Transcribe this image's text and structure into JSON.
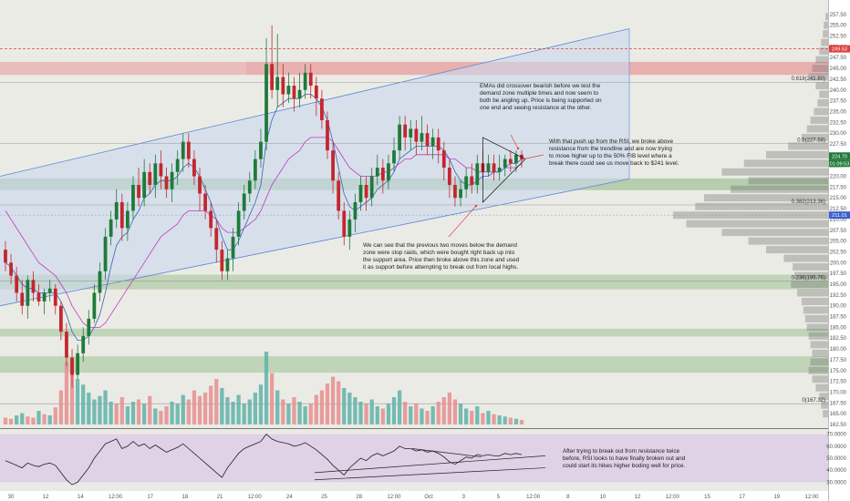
{
  "theme": {
    "background": "#ebebe6",
    "panel_bg": "#ffffff",
    "bull_color": "#1f7a3a",
    "bear_color": "#c4262e",
    "vol_bull": "#5fb3a8",
    "vol_bear": "#e88e8e",
    "channel_fill": "#c9d8ec",
    "channel_stroke": "#5a86d6",
    "green_zone": "#a9c79f",
    "red_zone": "#e7a5a5",
    "rsi_band": "#dccbe6",
    "ema_fast": "#3a63b8",
    "ema_slow": "#c03ac0",
    "fib_line": "#999999",
    "price_tag": "#1f7a3a",
    "red_dash": "#e04040",
    "blue_tag": "#3b5fd0"
  },
  "chart_data": {
    "type": "candlestick",
    "price_axis": {
      "ylim": [
        162.5,
        260
      ],
      "ticks": [
        "257.50",
        "255.00",
        "252.50",
        "250.00",
        "247.50",
        "245.00",
        "242.50",
        "240.00",
        "237.50",
        "235.00",
        "232.50",
        "230.00",
        "227.50",
        "225.00",
        "222.50",
        "220.00",
        "217.50",
        "215.00",
        "212.50",
        "210.00",
        "207.50",
        "205.00",
        "202.50",
        "200.00",
        "197.50",
        "195.00",
        "192.50",
        "190.00",
        "187.50",
        "185.00",
        "182.50",
        "180.00",
        "177.50",
        "175.00",
        "172.50",
        "170.00",
        "167.50",
        "165.00",
        "162.50"
      ]
    },
    "time_axis": {
      "ticks": [
        "30",
        "12",
        "14",
        "12:00",
        "17",
        "18",
        "21",
        "12:00",
        "24",
        "25",
        "28",
        "12:00",
        "Oct",
        "3",
        "5",
        "12:00",
        "8",
        "10",
        "12",
        "12:00",
        "15",
        "17",
        "19",
        "12:00"
      ]
    },
    "tags": {
      "top_red": "249.53",
      "price": "224.70",
      "countdown": "01:09:53",
      "blue": "211.01"
    },
    "fib_levels": [
      {
        "label": "0.618(241.80)",
        "value": 241.8
      },
      {
        "label": "0.5(227.58)",
        "value": 227.58
      },
      {
        "label": "0.382(213.36)",
        "value": 213.36
      },
      {
        "label": "0.236(195.76)",
        "value": 195.76
      },
      {
        "label": "0(167.32)",
        "value": 167.32
      }
    ],
    "red_dashed_level": 249.53,
    "zones": [
      {
        "type": "resistance",
        "from": 243.5,
        "to": 246.5
      },
      {
        "type": "support",
        "from": 219.5,
        "to": 216.8
      },
      {
        "type": "support",
        "from": 197.2,
        "to": 193.8
      },
      {
        "type": "support",
        "from": 184.7,
        "to": 182.9
      },
      {
        "type": "support",
        "from": 178.3,
        "to": 174.5
      }
    ],
    "channel": {
      "upper": [
        [
          0,
          220.0
        ],
        [
          690,
          254.2
        ]
      ],
      "lower": [
        [
          0,
          190.0
        ],
        [
          690,
          219.4
        ]
      ],
      "right_x": 690
    },
    "candles": [
      [
        203,
        200,
        205,
        198
      ],
      [
        200,
        197,
        202,
        195
      ],
      [
        197,
        193,
        199,
        191
      ],
      [
        193,
        190,
        196,
        188
      ],
      [
        190,
        196,
        197,
        187
      ],
      [
        196,
        193,
        198,
        191
      ],
      [
        193,
        191,
        195,
        190
      ],
      [
        191,
        193,
        194,
        188
      ],
      [
        193,
        194,
        196,
        191
      ],
      [
        194,
        190,
        195,
        188
      ],
      [
        190,
        184,
        191,
        182
      ],
      [
        184,
        178,
        186,
        176
      ],
      [
        178,
        174,
        180,
        171
      ],
      [
        174,
        179,
        181,
        173
      ],
      [
        179,
        183,
        185,
        177
      ],
      [
        183,
        187,
        189,
        181
      ],
      [
        187,
        193,
        195,
        186
      ],
      [
        193,
        198,
        200,
        191
      ],
      [
        198,
        206,
        208,
        196
      ],
      [
        206,
        210,
        212,
        204
      ],
      [
        210,
        214,
        217,
        208
      ],
      [
        214,
        208,
        216,
        205
      ],
      [
        208,
        212,
        214,
        205
      ],
      [
        212,
        218,
        220,
        210
      ],
      [
        218,
        215,
        222,
        213
      ],
      [
        215,
        221,
        224,
        213
      ],
      [
        221,
        218,
        223,
        216
      ],
      [
        218,
        223,
        225,
        215
      ],
      [
        223,
        220,
        226,
        217
      ],
      [
        220,
        217,
        222,
        215
      ],
      [
        217,
        221,
        223,
        214
      ],
      [
        221,
        224,
        226,
        218
      ],
      [
        224,
        228,
        230,
        221
      ],
      [
        228,
        224,
        230,
        222
      ],
      [
        224,
        220,
        226,
        218
      ],
      [
        220,
        216,
        222,
        212
      ],
      [
        216,
        212,
        218,
        210
      ],
      [
        212,
        208,
        214,
        206
      ],
      [
        208,
        203,
        210,
        200
      ],
      [
        203,
        198,
        205,
        196
      ],
      [
        198,
        201,
        203,
        196
      ],
      [
        201,
        206,
        208,
        198
      ],
      [
        206,
        212,
        214,
        204
      ],
      [
        212,
        216,
        218,
        210
      ],
      [
        216,
        219,
        221,
        214
      ],
      [
        219,
        224,
        226,
        217
      ],
      [
        224,
        228,
        231,
        222
      ],
      [
        228,
        246,
        252,
        226
      ],
      [
        246,
        240,
        255,
        238
      ],
      [
        240,
        243,
        253,
        236
      ],
      [
        243,
        239,
        246,
        236
      ],
      [
        239,
        241,
        244,
        237
      ],
      [
        241,
        238,
        243,
        235
      ],
      [
        238,
        240,
        244,
        236
      ],
      [
        240,
        244,
        246,
        238
      ],
      [
        244,
        241,
        246,
        238
      ],
      [
        241,
        238,
        243,
        234
      ],
      [
        238,
        233,
        240,
        231
      ],
      [
        233,
        226,
        235,
        224
      ],
      [
        226,
        219,
        228,
        216
      ],
      [
        219,
        212,
        221,
        210
      ],
      [
        212,
        206,
        214,
        204
      ],
      [
        206,
        210,
        212,
        203
      ],
      [
        210,
        214,
        216,
        207
      ],
      [
        214,
        218,
        220,
        212
      ],
      [
        218,
        215,
        220,
        212
      ],
      [
        215,
        220,
        222,
        213
      ],
      [
        220,
        222,
        225,
        218
      ],
      [
        222,
        219,
        224,
        216
      ],
      [
        219,
        223,
        225,
        217
      ],
      [
        223,
        226,
        229,
        221
      ],
      [
        226,
        232,
        234,
        224
      ],
      [
        232,
        229,
        234,
        226
      ],
      [
        229,
        231,
        233,
        226
      ],
      [
        231,
        228,
        233,
        225
      ],
      [
        228,
        230,
        234,
        226
      ],
      [
        230,
        227,
        232,
        225
      ],
      [
        227,
        229,
        231,
        224
      ],
      [
        229,
        226,
        231,
        223
      ],
      [
        226,
        222,
        228,
        219
      ],
      [
        222,
        218,
        224,
        215
      ],
      [
        218,
        215,
        220,
        213
      ],
      [
        215,
        217,
        219,
        213
      ],
      [
        217,
        220,
        222,
        215
      ],
      [
        220,
        218,
        223,
        216
      ],
      [
        218,
        223,
        225,
        216
      ],
      [
        223,
        221,
        226,
        219
      ],
      [
        221,
        223,
        225,
        220
      ],
      [
        223,
        221,
        225,
        219
      ],
      [
        221,
        222,
        225,
        219
      ],
      [
        222,
        224,
        225,
        220
      ],
      [
        224,
        223,
        226,
        221
      ],
      [
        223,
        225,
        226,
        221
      ],
      [
        225,
        224,
        226,
        222
      ]
    ],
    "ema_fast": [
      200,
      199,
      197,
      195,
      194,
      194,
      193,
      193,
      193,
      193,
      191,
      188,
      184,
      182,
      182,
      183,
      185,
      188,
      193,
      199,
      204,
      206,
      207,
      210,
      212,
      215,
      216,
      218,
      219,
      219,
      219,
      220,
      222,
      223,
      222,
      220,
      217,
      214,
      210,
      206,
      203,
      203,
      205,
      208,
      211,
      214,
      218,
      228,
      233,
      236,
      237,
      238,
      238,
      238,
      239,
      239,
      238,
      236,
      233,
      228,
      222,
      216,
      213,
      212,
      213,
      214,
      215,
      217,
      218,
      219,
      221,
      224,
      225,
      226,
      227,
      227,
      227,
      227,
      227,
      226,
      224,
      221,
      219,
      218,
      218,
      219,
      220,
      220,
      221,
      221,
      222,
      223,
      223,
      224
    ],
    "ema_slow": [
      212,
      210,
      208,
      206,
      204,
      202,
      200,
      199,
      198,
      197,
      195,
      193,
      190,
      188,
      186,
      185,
      185,
      185,
      186,
      188,
      190,
      192,
      194,
      196,
      198,
      200,
      202,
      204,
      206,
      207,
      208,
      209,
      211,
      212,
      212,
      212,
      212,
      211,
      210,
      208,
      207,
      207,
      207,
      208,
      209,
      210,
      212,
      215,
      218,
      220,
      222,
      224,
      225,
      226,
      228,
      229,
      229,
      229,
      229,
      228,
      226,
      224,
      222,
      221,
      220,
      220,
      220,
      220,
      221,
      221,
      222,
      223,
      224,
      224,
      225,
      225,
      225,
      225,
      225,
      225,
      224,
      224,
      223,
      222,
      222,
      221,
      221,
      221,
      221,
      221,
      222,
      222,
      222,
      223
    ],
    "volume": [
      [
        6,
        0
      ],
      [
        5,
        0
      ],
      [
        8,
        1
      ],
      [
        10,
        1
      ],
      [
        7,
        0
      ],
      [
        6,
        0
      ],
      [
        12,
        1
      ],
      [
        9,
        0
      ],
      [
        8,
        1
      ],
      [
        15,
        0
      ],
      [
        30,
        0
      ],
      [
        55,
        0
      ],
      [
        48,
        0
      ],
      [
        40,
        1
      ],
      [
        35,
        1
      ],
      [
        28,
        1
      ],
      [
        22,
        1
      ],
      [
        25,
        1
      ],
      [
        30,
        1
      ],
      [
        20,
        1
      ],
      [
        18,
        0
      ],
      [
        24,
        0
      ],
      [
        16,
        1
      ],
      [
        20,
        1
      ],
      [
        22,
        0
      ],
      [
        18,
        1
      ],
      [
        25,
        0
      ],
      [
        14,
        1
      ],
      [
        12,
        0
      ],
      [
        16,
        0
      ],
      [
        20,
        1
      ],
      [
        18,
        1
      ],
      [
        26,
        1
      ],
      [
        22,
        0
      ],
      [
        30,
        0
      ],
      [
        25,
        0
      ],
      [
        28,
        0
      ],
      [
        34,
        0
      ],
      [
        40,
        0
      ],
      [
        32,
        1
      ],
      [
        24,
        1
      ],
      [
        20,
        1
      ],
      [
        26,
        1
      ],
      [
        18,
        1
      ],
      [
        22,
        1
      ],
      [
        28,
        1
      ],
      [
        35,
        1
      ],
      [
        64,
        1
      ],
      [
        45,
        0
      ],
      [
        30,
        1
      ],
      [
        22,
        0
      ],
      [
        18,
        1
      ],
      [
        24,
        0
      ],
      [
        20,
        1
      ],
      [
        16,
        1
      ],
      [
        18,
        0
      ],
      [
        26,
        0
      ],
      [
        30,
        0
      ],
      [
        36,
        0
      ],
      [
        42,
        0
      ],
      [
        38,
        0
      ],
      [
        32,
        1
      ],
      [
        28,
        1
      ],
      [
        24,
        1
      ],
      [
        20,
        1
      ],
      [
        18,
        0
      ],
      [
        22,
        1
      ],
      [
        16,
        1
      ],
      [
        14,
        0
      ],
      [
        18,
        1
      ],
      [
        24,
        1
      ],
      [
        30,
        1
      ],
      [
        20,
        0
      ],
      [
        16,
        1
      ],
      [
        18,
        0
      ],
      [
        14,
        1
      ],
      [
        12,
        0
      ],
      [
        16,
        1
      ],
      [
        20,
        0
      ],
      [
        24,
        0
      ],
      [
        28,
        0
      ],
      [
        22,
        0
      ],
      [
        18,
        1
      ],
      [
        14,
        1
      ],
      [
        12,
        0
      ],
      [
        16,
        1
      ],
      [
        10,
        0
      ],
      [
        12,
        1
      ],
      [
        9,
        0
      ],
      [
        8,
        1
      ],
      [
        7,
        1
      ],
      [
        6,
        0
      ],
      [
        5,
        1
      ],
      [
        4,
        0
      ]
    ],
    "rsi": {
      "axis_ticks": [
        "70.0000",
        "60.0000",
        "50.0000",
        "40.0000",
        "30.0000"
      ],
      "ylim": [
        25,
        72
      ],
      "band": [
        30,
        70
      ],
      "values": [
        48,
        46,
        44,
        42,
        46,
        44,
        43,
        45,
        46,
        44,
        38,
        32,
        28,
        30,
        36,
        42,
        50,
        56,
        62,
        64,
        66,
        58,
        60,
        64,
        60,
        62,
        58,
        61,
        58,
        55,
        57,
        59,
        62,
        58,
        54,
        50,
        46,
        42,
        38,
        34,
        42,
        48,
        54,
        58,
        60,
        62,
        64,
        70,
        66,
        64,
        63,
        62,
        60,
        61,
        63,
        60,
        57,
        53,
        49,
        44,
        40,
        36,
        42,
        46,
        50,
        48,
        52,
        54,
        52,
        54,
        56,
        60,
        58,
        58,
        56,
        57,
        55,
        56,
        54,
        51,
        47,
        45,
        48,
        51,
        50,
        53,
        52,
        53,
        52,
        52,
        54,
        53,
        54,
        53
      ]
    },
    "volume_profile": [
      [
        257,
        3
      ],
      [
        255,
        5
      ],
      [
        253,
        6
      ],
      [
        251,
        8
      ],
      [
        249,
        10
      ],
      [
        247,
        14
      ],
      [
        245,
        18
      ],
      [
        243,
        22
      ],
      [
        241,
        14
      ],
      [
        239,
        10
      ],
      [
        237,
        12
      ],
      [
        235,
        16
      ],
      [
        233,
        20
      ],
      [
        231,
        24
      ],
      [
        229,
        30
      ],
      [
        227,
        45
      ],
      [
        225,
        70
      ],
      [
        223,
        95
      ],
      [
        221,
        120
      ],
      [
        219,
        90
      ],
      [
        217,
        110
      ],
      [
        215,
        140
      ],
      [
        213,
        150
      ],
      [
        211,
        175
      ],
      [
        209,
        160
      ],
      [
        207,
        120
      ],
      [
        205,
        90
      ],
      [
        203,
        70
      ],
      [
        201,
        50
      ],
      [
        199,
        40
      ],
      [
        197,
        38
      ],
      [
        195,
        42
      ],
      [
        193,
        35
      ],
      [
        191,
        30
      ],
      [
        189,
        28
      ],
      [
        187,
        26
      ],
      [
        185,
        24
      ],
      [
        183,
        22
      ],
      [
        181,
        20
      ],
      [
        179,
        18
      ],
      [
        177,
        20
      ],
      [
        175,
        22
      ],
      [
        173,
        18
      ],
      [
        171,
        14
      ],
      [
        169,
        10
      ],
      [
        167,
        8
      ],
      [
        165,
        6
      ]
    ],
    "annotations": [
      "EMAs did crossover bearish before we test the",
      "demand zone multiple times and now seem to",
      "both be angling up. Price is being supported on",
      "one end and seeing resistance at the other.",
      "With that push up from the RSI, we broke above",
      "resistance from the trendline and are now trying",
      "to move higher up to the 50% FIB level where a",
      "break there could see us move back to $241 level.",
      "We can see that the previous two moves below the demand",
      "zone were stop raids, which were bought right back up into",
      "the support area. Price then broke above this zone and used",
      "it as support before attempting to break out from local highs.",
      "After trying to break out from resistance twice",
      "before, RSI looks to have finally broken out and",
      "could start its hikes higher boding well for price."
    ]
  }
}
